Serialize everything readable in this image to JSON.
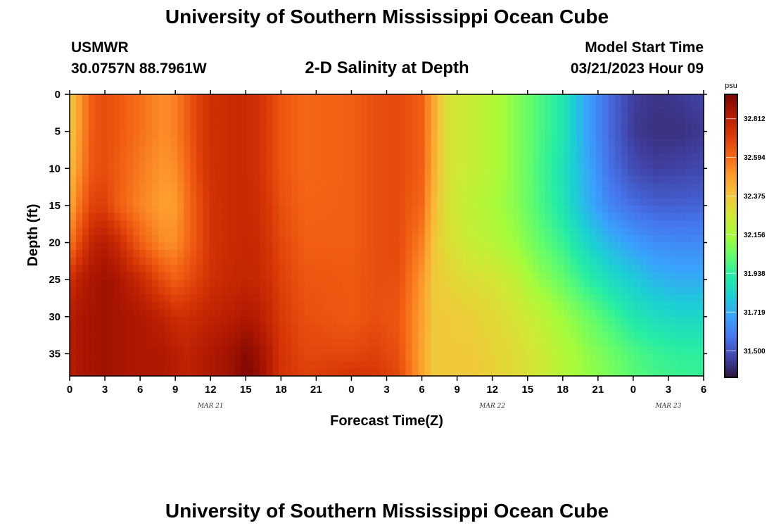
{
  "header": {
    "title": "University of Southern Mississippi Ocean Cube",
    "station": "USMWR",
    "coords": "30.0757N  88.7961W",
    "plot_title": "2-D Salinity at Depth",
    "model_label": "Model Start Time",
    "model_time": "03/21/2023 Hour 09"
  },
  "footer": {
    "title": "University of Southern Mississippi Ocean Cube"
  },
  "colors": {
    "scale": [
      "#30123b",
      "#4145ab",
      "#4675ed",
      "#39a2fc",
      "#1bcfd4",
      "#24eca6",
      "#61fc6c",
      "#a4fc3b",
      "#d1e834",
      "#f3c63a",
      "#fe9b2d",
      "#f36315",
      "#d93806",
      "#b11901",
      "#7a0402"
    ]
  },
  "chart_data": {
    "type": "heatmap",
    "title": "2-D Salinity at Depth",
    "xlabel": "Forecast Time(Z)",
    "ylabel": "Depth (ft)",
    "x_ticks": [
      "0",
      "3",
      "6",
      "9",
      "12",
      "15",
      "18",
      "21",
      "0",
      "3",
      "6",
      "9",
      "12",
      "15",
      "18",
      "21",
      "0",
      "3",
      "6"
    ],
    "date_labels": [
      {
        "label": "MAR 21",
        "at_hour": 12
      },
      {
        "label": "MAR 22",
        "at_hour": 36
      },
      {
        "label": "MAR 23",
        "at_hour": 51
      }
    ],
    "xlim_hours": [
      0,
      54
    ],
    "y_ticks": [
      0,
      5,
      10,
      15,
      20,
      25,
      30,
      35
    ],
    "ylim": [
      0,
      38
    ],
    "colorbar": {
      "unit": "psu",
      "range": [
        31.35,
        32.95
      ],
      "ticks": [
        "32.812",
        "32.594",
        "32.375",
        "32.156",
        "31.938",
        "31.719",
        "31.500"
      ]
    },
    "profiles": {
      "depths": [
        0,
        5,
        10,
        15,
        20,
        25,
        30,
        35,
        38
      ],
      "hours": [
        0,
        1,
        2,
        3,
        4,
        6,
        8,
        9,
        10,
        11,
        12,
        13,
        14,
        15,
        16,
        17,
        18,
        20,
        24,
        26,
        28,
        30,
        31,
        32,
        33,
        34,
        36,
        38,
        40,
        42,
        44,
        46,
        48,
        50,
        52,
        54
      ],
      "salinity": [
        [
          32.36,
          32.36,
          32.39,
          32.45,
          32.55,
          32.75,
          32.82,
          32.82,
          32.82
        ],
        [
          32.52,
          32.52,
          32.54,
          32.6,
          32.7,
          32.82,
          32.85,
          32.85,
          32.85
        ],
        [
          32.64,
          32.64,
          32.65,
          32.7,
          32.8,
          32.85,
          32.86,
          32.86,
          32.86
        ],
        [
          32.66,
          32.66,
          32.66,
          32.7,
          32.82,
          32.87,
          32.87,
          32.87,
          32.87
        ],
        [
          32.64,
          32.64,
          32.63,
          32.63,
          32.78,
          32.85,
          32.86,
          32.86,
          32.86
        ],
        [
          32.58,
          32.58,
          32.56,
          32.54,
          32.62,
          32.78,
          32.84,
          32.84,
          32.84
        ],
        [
          32.52,
          32.52,
          32.5,
          32.48,
          32.52,
          32.66,
          32.8,
          32.84,
          32.84
        ],
        [
          32.55,
          32.55,
          32.52,
          32.49,
          32.52,
          32.62,
          32.76,
          32.82,
          32.82
        ],
        [
          32.62,
          32.62,
          32.6,
          32.58,
          32.59,
          32.66,
          32.76,
          32.8,
          32.8
        ],
        [
          32.7,
          32.7,
          32.69,
          32.66,
          32.66,
          32.7,
          32.78,
          32.82,
          32.82
        ],
        [
          32.75,
          32.75,
          32.75,
          32.74,
          32.74,
          32.75,
          32.8,
          32.84,
          32.84
        ],
        [
          32.76,
          32.76,
          32.76,
          32.76,
          32.76,
          32.77,
          32.81,
          32.86,
          32.86
        ],
        [
          32.77,
          32.77,
          32.77,
          32.77,
          32.77,
          32.78,
          32.82,
          32.88,
          32.88
        ],
        [
          32.77,
          32.77,
          32.77,
          32.77,
          32.78,
          32.79,
          32.84,
          32.92,
          32.94
        ],
        [
          32.75,
          32.75,
          32.75,
          32.76,
          32.77,
          32.78,
          32.82,
          32.88,
          32.9
        ],
        [
          32.7,
          32.7,
          32.7,
          32.72,
          32.73,
          32.75,
          32.78,
          32.82,
          32.82
        ],
        [
          32.64,
          32.64,
          32.64,
          32.66,
          32.68,
          32.7,
          32.72,
          32.74,
          32.74
        ],
        [
          32.6,
          32.6,
          32.6,
          32.61,
          32.62,
          32.64,
          32.66,
          32.68,
          32.7
        ],
        [
          32.62,
          32.62,
          32.62,
          32.62,
          32.62,
          32.63,
          32.63,
          32.68,
          32.74
        ],
        [
          32.66,
          32.66,
          32.66,
          32.66,
          32.66,
          32.66,
          32.66,
          32.7,
          32.73
        ],
        [
          32.67,
          32.67,
          32.67,
          32.67,
          32.67,
          32.66,
          32.64,
          32.66,
          32.68
        ],
        [
          32.62,
          32.62,
          32.62,
          32.6,
          32.55,
          32.5,
          32.48,
          32.47,
          32.47
        ],
        [
          32.46,
          32.46,
          32.45,
          32.42,
          32.39,
          32.37,
          32.37,
          32.37,
          32.37
        ],
        [
          32.3,
          32.3,
          32.3,
          32.3,
          32.3,
          32.34,
          32.37,
          32.37,
          32.37
        ],
        [
          32.26,
          32.26,
          32.26,
          32.25,
          32.28,
          32.32,
          32.36,
          32.37,
          32.37
        ],
        [
          32.24,
          32.24,
          32.24,
          32.22,
          32.24,
          32.3,
          32.35,
          32.37,
          32.37
        ],
        [
          32.19,
          32.19,
          32.19,
          32.17,
          32.2,
          32.28,
          32.32,
          32.34,
          32.34
        ],
        [
          32.1,
          32.1,
          32.1,
          32.1,
          32.14,
          32.22,
          32.28,
          32.31,
          32.31
        ],
        [
          32.0,
          32.0,
          31.99,
          32.0,
          32.04,
          32.12,
          32.22,
          32.26,
          32.26
        ],
        [
          31.9,
          31.9,
          31.88,
          31.89,
          31.96,
          32.04,
          32.14,
          32.19,
          32.19
        ],
        [
          31.7,
          31.7,
          31.72,
          31.74,
          31.84,
          31.94,
          32.06,
          32.12,
          32.13
        ],
        [
          31.55,
          31.55,
          31.57,
          31.62,
          31.74,
          31.86,
          31.98,
          32.06,
          32.08
        ],
        [
          31.45,
          31.44,
          31.48,
          31.56,
          31.68,
          31.8,
          31.9,
          32.0,
          32.02
        ],
        [
          31.43,
          31.42,
          31.45,
          31.53,
          31.64,
          31.74,
          31.86,
          31.96,
          31.98
        ],
        [
          31.44,
          31.42,
          31.46,
          31.53,
          31.63,
          31.72,
          31.84,
          31.94,
          31.96
        ],
        [
          31.46,
          31.44,
          31.47,
          31.54,
          31.63,
          31.72,
          31.84,
          31.94,
          31.95
        ]
      ]
    }
  }
}
